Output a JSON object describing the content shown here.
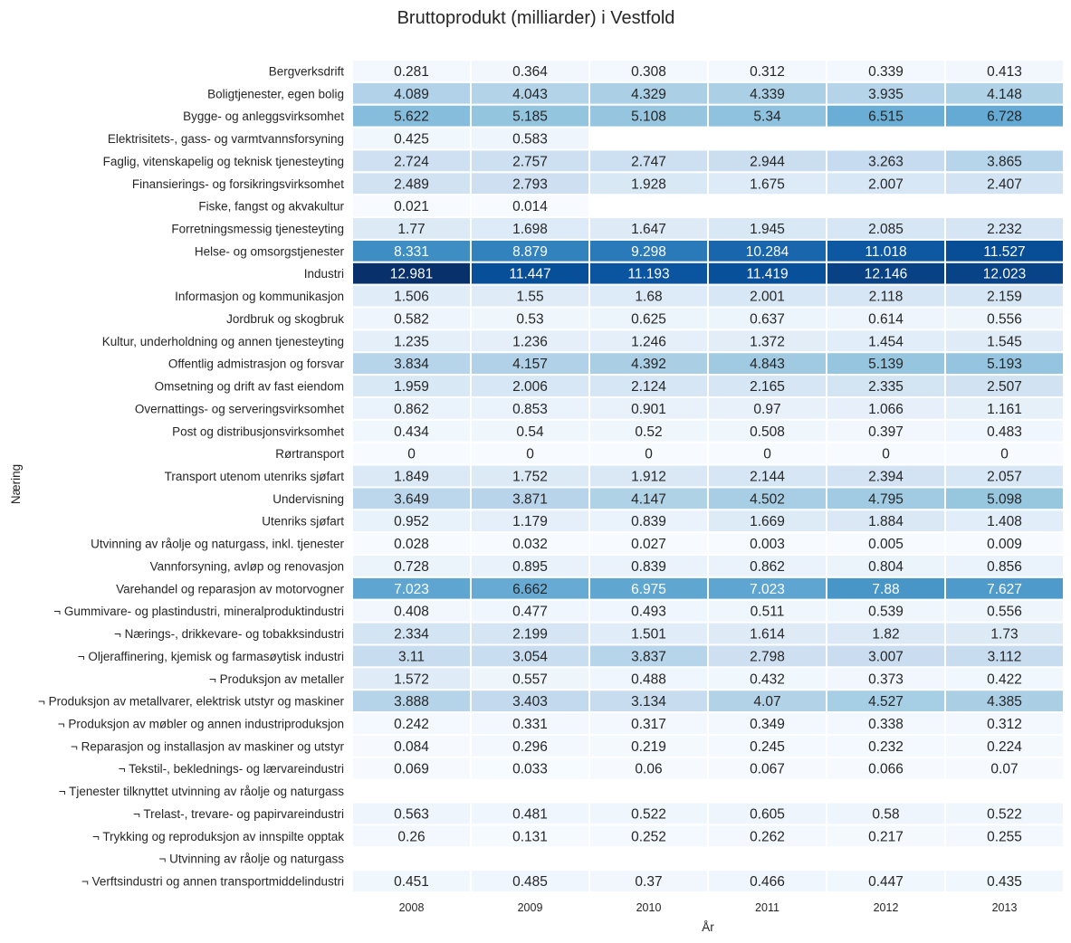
{
  "chart_data": {
    "type": "heatmap",
    "title": "Bruttoprodukt (milliarder) i Vestfold",
    "xlabel": "År",
    "ylabel": "Næring",
    "columns": [
      "2008",
      "2009",
      "2010",
      "2011",
      "2012",
      "2013"
    ],
    "rows": [
      "Bergverksdrift",
      "Boligtjenester, egen bolig",
      "Bygge- og anleggsvirksomhet",
      "Elektrisitets-, gass- og varmtvannsforsyning",
      "Faglig, vitenskapelig og teknisk tjenesteyting",
      "Finansierings- og forsikringsvirksomhet",
      "Fiske, fangst og akvakultur",
      "Forretningsmessig tjenesteyting",
      "Helse- og omsorgstjenester",
      "Industri",
      "Informasjon og kommunikasjon",
      "Jordbruk og skogbruk",
      "Kultur, underholdning og annen tjenesteyting",
      "Offentlig admistrasjon og forsvar",
      "Omsetning og drift av fast eiendom",
      "Overnattings- og serveringsvirksomhet",
      "Post og distribusjonsvirksomhet",
      "Rørtransport",
      "Transport utenom utenriks sjøfart",
      "Undervisning",
      "Utenriks sjøfart",
      "Utvinning av råolje og naturgass, inkl. tjenester",
      "Vannforsyning, avløp og renovasjon",
      "Varehandel og reparasjon av motorvogner",
      "¬ Gummivare- og plastindustri, mineralproduktindustri",
      "¬ Nærings-, drikkevare- og tobakksindustri",
      "¬ Oljeraffinering, kjemisk og farmasøytisk industri",
      "¬ Produksjon av metaller",
      "¬ Produksjon av metallvarer, elektrisk utstyr og maskiner",
      "¬ Produksjon av møbler og annen industriproduksjon",
      "¬ Reparasjon og installasjon av maskiner og utstyr",
      "¬ Tekstil-, beklednings- og lærvareindustri",
      "¬ Tjenester tilknyttet utvinning av råolje og naturgass",
      "¬ Trelast-, trevare- og papirvareindustri",
      "¬ Trykking og reproduksjon av innspilte opptak",
      "¬ Utvinning av råolje og naturgass",
      "¬ Verftsindustri og annen transportmiddelindustri"
    ],
    "values": [
      [
        0.281,
        0.364,
        0.308,
        0.312,
        0.339,
        0.413
      ],
      [
        4.089,
        4.043,
        4.329,
        4.339,
        3.935,
        4.148
      ],
      [
        5.622,
        5.185,
        5.108,
        5.34,
        6.515,
        6.728
      ],
      [
        0.425,
        0.583,
        null,
        null,
        null,
        null
      ],
      [
        2.724,
        2.757,
        2.747,
        2.944,
        3.263,
        3.865
      ],
      [
        2.489,
        2.793,
        1.928,
        1.675,
        2.007,
        2.407
      ],
      [
        0.021,
        0.014,
        null,
        null,
        null,
        null
      ],
      [
        1.77,
        1.698,
        1.647,
        1.945,
        2.085,
        2.232
      ],
      [
        8.331,
        8.879,
        9.298,
        10.284,
        11.018,
        11.527
      ],
      [
        12.981,
        11.447,
        11.193,
        11.419,
        12.146,
        12.023
      ],
      [
        1.506,
        1.55,
        1.68,
        2.001,
        2.118,
        2.159
      ],
      [
        0.582,
        0.53,
        0.625,
        0.637,
        0.614,
        0.556
      ],
      [
        1.235,
        1.236,
        1.246,
        1.372,
        1.454,
        1.545
      ],
      [
        3.834,
        4.157,
        4.392,
        4.843,
        5.139,
        5.193
      ],
      [
        1.959,
        2.006,
        2.124,
        2.165,
        2.335,
        2.507
      ],
      [
        0.862,
        0.853,
        0.901,
        0.97,
        1.066,
        1.161
      ],
      [
        0.434,
        0.54,
        0.52,
        0.508,
        0.397,
        0.483
      ],
      [
        0,
        0,
        0,
        0,
        0,
        0
      ],
      [
        1.849,
        1.752,
        1.912,
        2.144,
        2.394,
        2.057
      ],
      [
        3.649,
        3.871,
        4.147,
        4.502,
        4.795,
        5.098
      ],
      [
        0.952,
        1.179,
        0.839,
        1.669,
        1.884,
        1.408
      ],
      [
        0.028,
        0.032,
        0.027,
        0.003,
        0.005,
        0.009
      ],
      [
        0.728,
        0.895,
        0.839,
        0.862,
        0.804,
        0.856
      ],
      [
        7.023,
        6.662,
        6.975,
        7.023,
        7.88,
        7.627
      ],
      [
        0.408,
        0.477,
        0.493,
        0.511,
        0.539,
        0.556
      ],
      [
        2.334,
        2.199,
        1.501,
        1.614,
        1.82,
        1.73
      ],
      [
        3.11,
        3.054,
        3.837,
        2.798,
        3.007,
        3.112
      ],
      [
        1.572,
        0.557,
        0.488,
        0.432,
        0.373,
        0.422
      ],
      [
        3.888,
        3.403,
        3.134,
        4.07,
        4.527,
        4.385
      ],
      [
        0.242,
        0.331,
        0.317,
        0.349,
        0.338,
        0.312
      ],
      [
        0.084,
        0.296,
        0.219,
        0.245,
        0.232,
        0.224
      ],
      [
        0.069,
        0.033,
        0.06,
        0.067,
        0.066,
        0.07
      ],
      [
        null,
        null,
        null,
        null,
        null,
        null
      ],
      [
        0.563,
        0.481,
        0.522,
        0.605,
        0.58,
        0.522
      ],
      [
        0.26,
        0.131,
        0.252,
        0.262,
        0.217,
        0.255
      ],
      [
        null,
        null,
        null,
        null,
        null,
        null
      ],
      [
        0.451,
        0.485,
        0.37,
        0.466,
        0.447,
        0.435
      ]
    ],
    "colormap": "Blues",
    "color_range": [
      0,
      12.981
    ],
    "colorbar": false,
    "grid": false
  }
}
